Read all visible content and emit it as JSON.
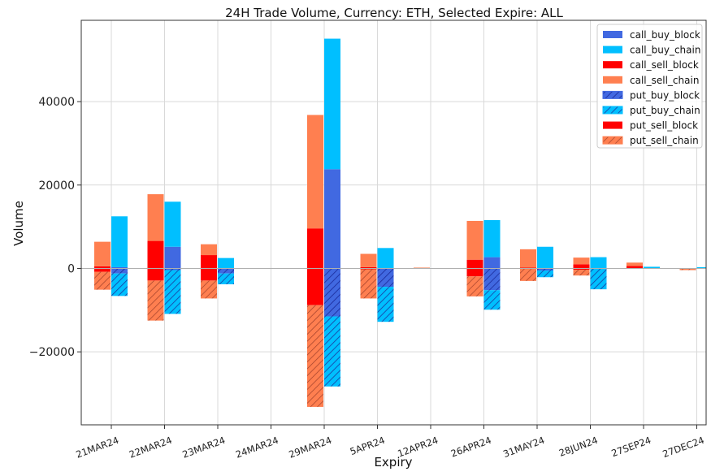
{
  "chart_data": {
    "type": "bar",
    "title": "24H Trade Volume, Currency: ETH, Selected Expire: ALL",
    "xlabel": "Expiry",
    "ylabel": "Volume",
    "ylim": [
      -37500,
      59500
    ],
    "yticks": [
      -20000,
      0,
      20000,
      40000
    ],
    "ytick_labels": [
      "−20000",
      "0",
      "20000",
      "40000"
    ],
    "grid": true,
    "legend_position": "top-right",
    "categories": [
      "21MAR24",
      "22MAR24",
      "23MAR24",
      "24MAR24",
      "29MAR24",
      "5APR24",
      "12APR24",
      "26APR24",
      "31MAY24",
      "28JUN24",
      "27SEP24",
      "27DEC24"
    ],
    "series": [
      {
        "name": "call_buy_block",
        "color": "#4169e1",
        "hatch": false,
        "group": "buy",
        "stack": "call",
        "values": [
          300,
          5200,
          0,
          0,
          23800,
          0,
          0,
          2700,
          0,
          0,
          0,
          0
        ]
      },
      {
        "name": "call_buy_chain",
        "color": "#00bfff",
        "hatch": false,
        "group": "buy",
        "stack": "call",
        "values": [
          12200,
          10800,
          2500,
          0,
          31300,
          4900,
          0,
          8900,
          5200,
          2700,
          400,
          300
        ]
      },
      {
        "name": "call_sell_block",
        "color": "#ff0000",
        "hatch": false,
        "group": "sell",
        "stack": "call",
        "values": [
          500,
          6600,
          3200,
          0,
          9600,
          300,
          0,
          2100,
          200,
          1000,
          600,
          0
        ]
      },
      {
        "name": "call_sell_chain",
        "color": "#ff7f50",
        "hatch": false,
        "group": "sell",
        "stack": "call",
        "values": [
          5900,
          11200,
          2600,
          0,
          27200,
          3200,
          200,
          9300,
          4400,
          1600,
          800,
          0
        ]
      },
      {
        "name": "put_buy_block",
        "color": "#4169e1",
        "hatch": true,
        "group": "buy",
        "stack": "put",
        "values": [
          -1200,
          -400,
          -1200,
          0,
          -11500,
          -4400,
          0,
          -5200,
          -500,
          0,
          0,
          0
        ]
      },
      {
        "name": "put_buy_chain",
        "color": "#00bfff",
        "hatch": true,
        "group": "buy",
        "stack": "put",
        "values": [
          -5400,
          -10500,
          -2600,
          0,
          -16800,
          -8400,
          0,
          -4700,
          -1600,
          -5000,
          0,
          0
        ]
      },
      {
        "name": "put_sell_block",
        "color": "#ff0000",
        "hatch": false,
        "group": "sell",
        "stack": "put",
        "values": [
          -800,
          -2900,
          -2900,
          0,
          -8800,
          -200,
          0,
          -1900,
          0,
          -300,
          0,
          0
        ]
      },
      {
        "name": "put_sell_chain",
        "color": "#ff7f50",
        "hatch": true,
        "group": "sell",
        "stack": "put",
        "values": [
          -4300,
          -9600,
          -4300,
          0,
          -24400,
          -7000,
          0,
          -4800,
          -3000,
          -1400,
          0,
          -400
        ]
      }
    ]
  }
}
